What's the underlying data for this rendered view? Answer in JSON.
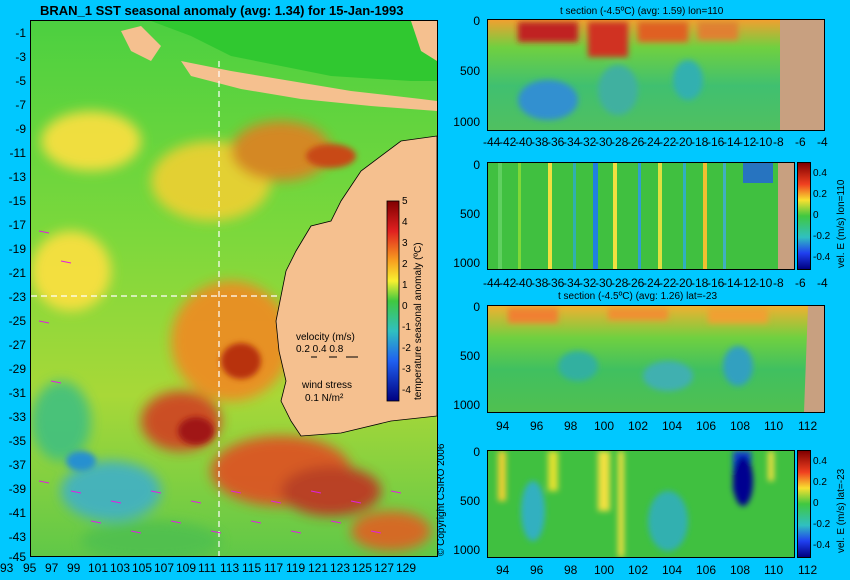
{
  "main_map": {
    "title": "BRAN_1 SST seasonal anomaly (avg: 1.34) for 15-Jan-1993",
    "lat_ticks": [
      "-1",
      "-3",
      "-5",
      "-7",
      "-9",
      "-11",
      "-13",
      "-15",
      "-17",
      "-19",
      "-21",
      "-23",
      "-25",
      "-27",
      "-29",
      "-31",
      "-33",
      "-35",
      "-37",
      "-39",
      "-41",
      "-43",
      "-45"
    ],
    "lon_ticks": [
      "93",
      "95",
      "97",
      "99",
      "101",
      "103",
      "105",
      "107",
      "109",
      "111",
      "113",
      "115",
      "117",
      "119",
      "121",
      "123",
      "125",
      "127",
      "129"
    ],
    "colorbar": {
      "label": "temperature seasonal anomaly (ºC)",
      "ticks": [
        "5",
        "4",
        "3",
        "2",
        "1",
        "0",
        "-1",
        "-2",
        "-3",
        "-4"
      ]
    },
    "velocity_legend": {
      "title": "velocity (m/s)",
      "values": "0.2 0.4 0.8"
    },
    "wind_legend": {
      "title": "wind stress",
      "value": "0.1 N/m²"
    },
    "section_lon": "110",
    "section_lat": "-23"
  },
  "copyright": "© Copyright CSIRO 2006",
  "panels": [
    {
      "title": "t section (-4.5ºC) (avg: 1.59) lon=110",
      "y_ticks": [
        "0",
        "500",
        "1000"
      ],
      "x_ticks": [
        "-44",
        "-42",
        "-40",
        "-38",
        "-36",
        "-34",
        "-32",
        "-30",
        "-28",
        "-26",
        "-24",
        "-22",
        "-20",
        "-18",
        "-16",
        "-14",
        "-12",
        "-10",
        "-8",
        "-6",
        "-4"
      ]
    },
    {
      "title": "",
      "y_ticks": [
        "0",
        "500",
        "1000"
      ],
      "x_ticks": [
        "-44",
        "-42",
        "-40",
        "-38",
        "-36",
        "-34",
        "-32",
        "-30",
        "-28",
        "-26",
        "-24",
        "-22",
        "-20",
        "-18",
        "-16",
        "-14",
        "-12",
        "-10",
        "-8",
        "-6",
        "-4"
      ],
      "cb_label": "vel. E (m/s) lon=110",
      "cb_ticks": [
        "0.4",
        "0.2",
        "0",
        "-0.2",
        "-0.4"
      ]
    },
    {
      "title": "t section (-4.5ºC) (avg: 1.26) lat=-23",
      "y_ticks": [
        "0",
        "500",
        "1000"
      ],
      "x_ticks": [
        "94",
        "96",
        "98",
        "100",
        "102",
        "104",
        "106",
        "108",
        "110",
        "112"
      ]
    },
    {
      "title": "",
      "y_ticks": [
        "0",
        "500",
        "1000"
      ],
      "x_ticks": [
        "94",
        "96",
        "98",
        "100",
        "102",
        "104",
        "106",
        "108",
        "110",
        "112"
      ],
      "cb_label": "vel. E (m/s) lat=-23",
      "cb_ticks": [
        "0.4",
        "0.2",
        "0",
        "-0.2",
        "-0.4"
      ]
    }
  ],
  "colors": {
    "background": "#00c8ff",
    "land": "#f5c08f",
    "section_land": "#c8a080",
    "ocean_green": "#3cc83c",
    "anomaly_warm": "#d04020",
    "anomaly_cold": "#3090d0"
  }
}
